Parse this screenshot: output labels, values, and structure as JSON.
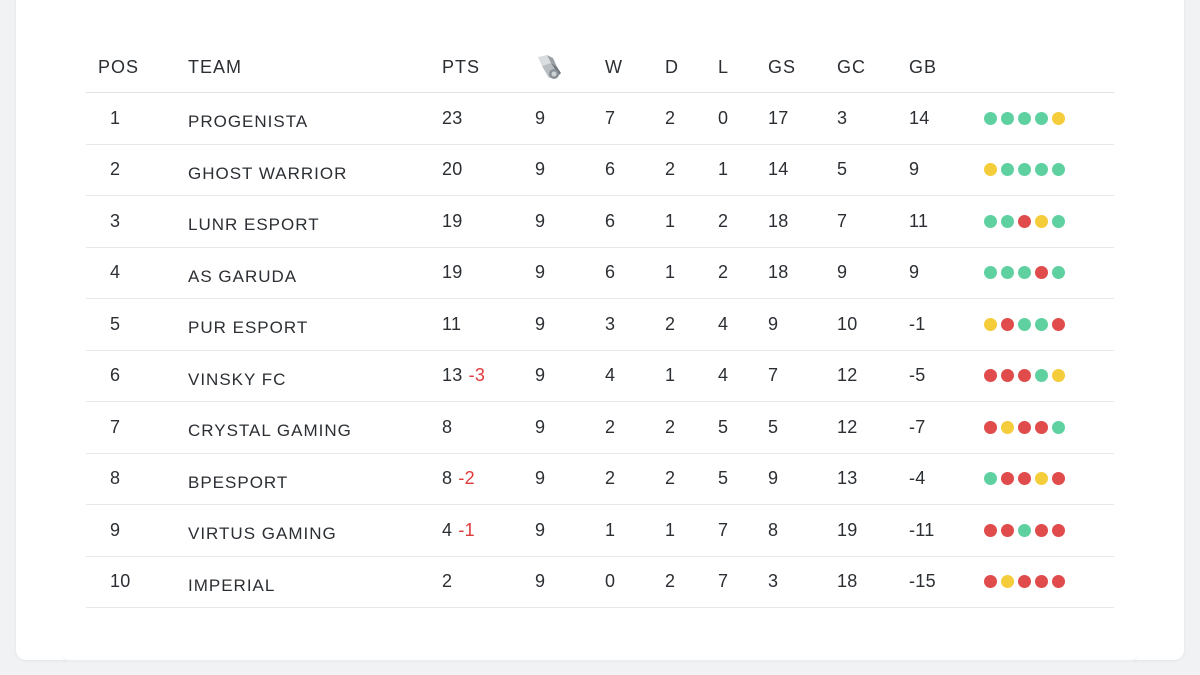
{
  "colors": {
    "win": "#5fd1a1",
    "draw": "#f5cc3a",
    "loss": "#e04b4b",
    "deduction": "#e03b3b"
  },
  "header": {
    "pos": "POS",
    "team": "TEAM",
    "pts": "PTS",
    "played_icon": "whistle-icon",
    "w": "W",
    "d": "D",
    "l": "L",
    "gs": "GS",
    "gc": "GC",
    "gb": "GB"
  },
  "rows": [
    {
      "pos": "1",
      "team": "PROGENISTA",
      "pts": "23",
      "deduction": "",
      "pld": "9",
      "w": "7",
      "d": "2",
      "l": "0",
      "gs": "17",
      "gc": "3",
      "gb": "14",
      "form": [
        "W",
        "W",
        "W",
        "W",
        "D"
      ]
    },
    {
      "pos": "2",
      "team": "GHOST WARRIOR",
      "pts": "20",
      "deduction": "",
      "pld": "9",
      "w": "6",
      "d": "2",
      "l": "1",
      "gs": "14",
      "gc": "5",
      "gb": "9",
      "form": [
        "D",
        "W",
        "W",
        "W",
        "W"
      ]
    },
    {
      "pos": "3",
      "team": "LUNR ESPORT",
      "pts": "19",
      "deduction": "",
      "pld": "9",
      "w": "6",
      "d": "1",
      "l": "2",
      "gs": "18",
      "gc": "7",
      "gb": "11",
      "form": [
        "W",
        "W",
        "L",
        "D",
        "W"
      ]
    },
    {
      "pos": "4",
      "team": "AS GARUDA",
      "pts": "19",
      "deduction": "",
      "pld": "9",
      "w": "6",
      "d": "1",
      "l": "2",
      "gs": "18",
      "gc": "9",
      "gb": "9",
      "form": [
        "W",
        "W",
        "W",
        "L",
        "W"
      ]
    },
    {
      "pos": "5",
      "team": "PUR ESPORT",
      "pts": "11",
      "deduction": "",
      "pld": "9",
      "w": "3",
      "d": "2",
      "l": "4",
      "gs": "9",
      "gc": "10",
      "gb": "-1",
      "form": [
        "D",
        "L",
        "W",
        "W",
        "L"
      ]
    },
    {
      "pos": "6",
      "team": "VINSKY FC",
      "pts": "13",
      "deduction": "-3",
      "pld": "9",
      "w": "4",
      "d": "1",
      "l": "4",
      "gs": "7",
      "gc": "12",
      "gb": "-5",
      "form": [
        "L",
        "L",
        "L",
        "W",
        "D"
      ]
    },
    {
      "pos": "7",
      "team": "CRYSTAL GAMING",
      "pts": "8",
      "deduction": "",
      "pld": "9",
      "w": "2",
      "d": "2",
      "l": "5",
      "gs": "5",
      "gc": "12",
      "gb": "-7",
      "form": [
        "L",
        "D",
        "L",
        "L",
        "W"
      ]
    },
    {
      "pos": "8",
      "team": "BPESPORT",
      "pts": "8",
      "deduction": "-2",
      "pld": "9",
      "w": "2",
      "d": "2",
      "l": "5",
      "gs": "9",
      "gc": "13",
      "gb": "-4",
      "form": [
        "W",
        "L",
        "L",
        "D",
        "L"
      ]
    },
    {
      "pos": "9",
      "team": "VIRTUS GAMING",
      "pts": "4",
      "deduction": "-1",
      "pld": "9",
      "w": "1",
      "d": "1",
      "l": "7",
      "gs": "8",
      "gc": "19",
      "gb": "-11",
      "form": [
        "L",
        "L",
        "W",
        "L",
        "L"
      ]
    },
    {
      "pos": "10",
      "team": "IMPERIAL",
      "pts": "2",
      "deduction": "",
      "pld": "9",
      "w": "0",
      "d": "2",
      "l": "7",
      "gs": "3",
      "gc": "18",
      "gb": "-15",
      "form": [
        "L",
        "D",
        "L",
        "L",
        "L"
      ]
    }
  ]
}
